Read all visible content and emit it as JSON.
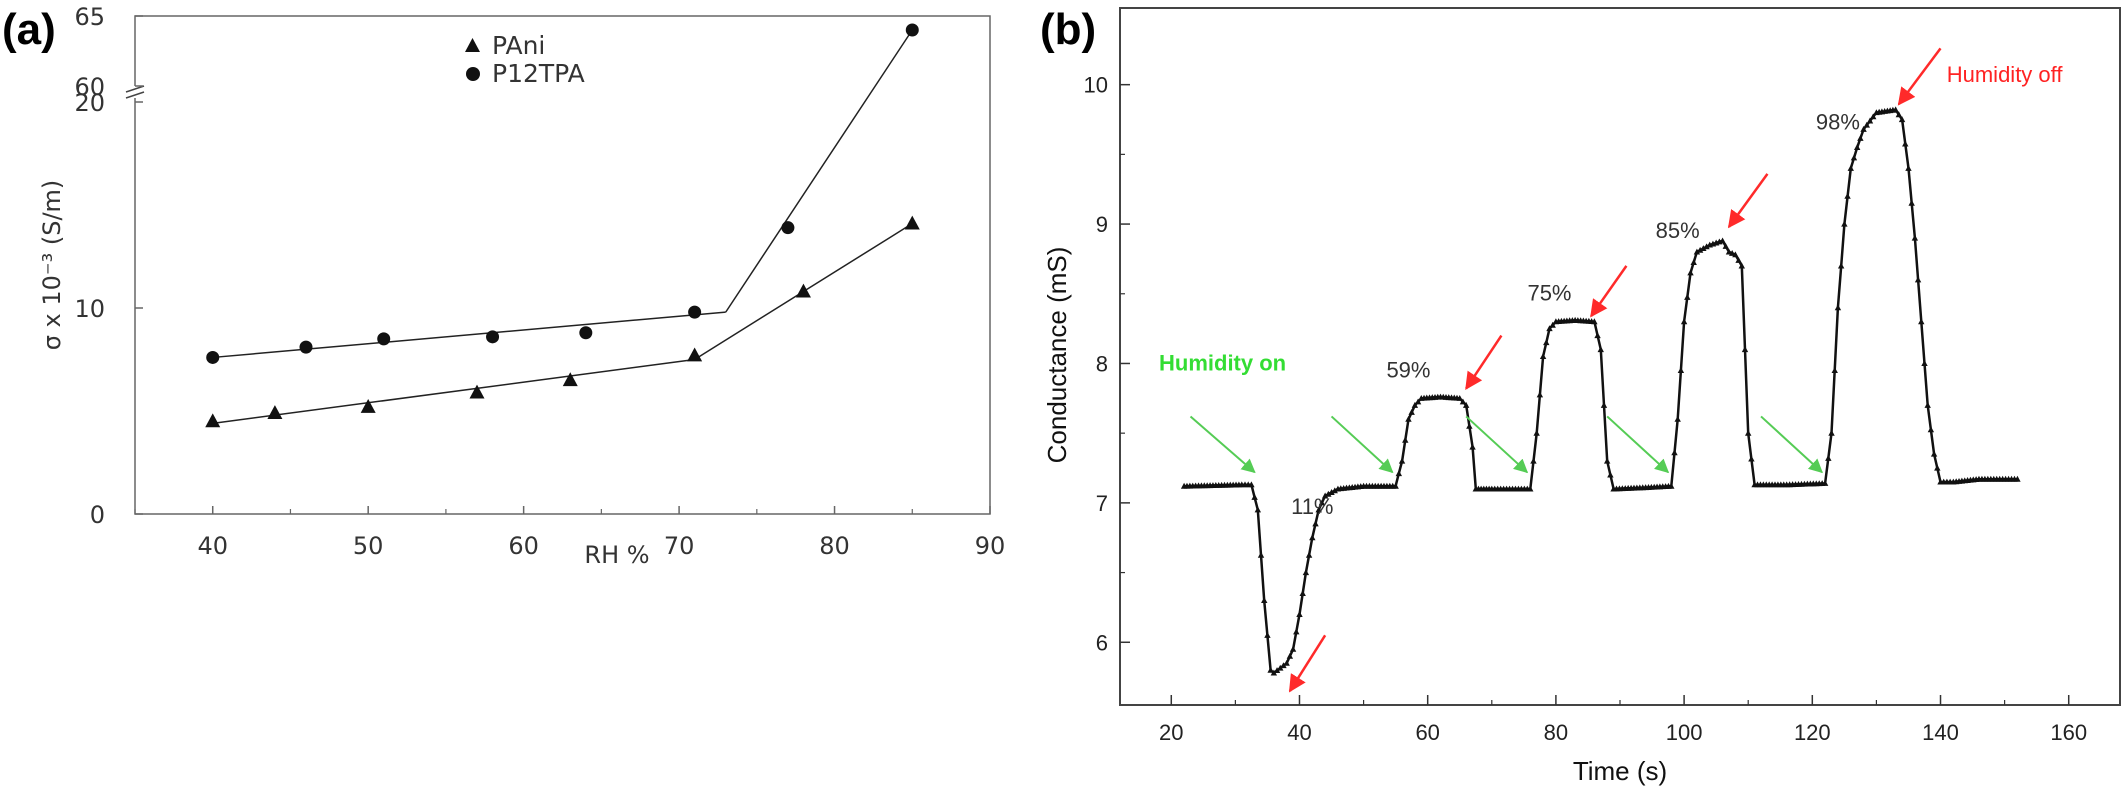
{
  "panels": {
    "a": "(a)",
    "b": "(b)"
  },
  "chart_data": [
    {
      "type": "scatter",
      "panel": "(a)",
      "xlabel": "RH %",
      "ylabel": "σ x 10⁻³ (S/m)",
      "xlim": [
        35,
        90
      ],
      "ylim": [
        0,
        65
      ],
      "y_axis_break": [
        22,
        59
      ],
      "xticks": [
        40,
        50,
        60,
        70,
        80,
        90
      ],
      "yticks": [
        0,
        10,
        20,
        60,
        65
      ],
      "legend_position": "top-right",
      "series": [
        {
          "name": "PAni",
          "marker": "triangle",
          "x": [
            40,
            44,
            50,
            57,
            63,
            71,
            78,
            85
          ],
          "y": [
            4.5,
            4.9,
            5.2,
            5.9,
            6.5,
            7.7,
            10.8,
            14.1
          ],
          "fit_lines": [
            {
              "x": [
                40,
                71
              ],
              "y": [
                4.4,
                7.5
              ]
            },
            {
              "x": [
                71,
                85
              ],
              "y": [
                7.5,
                14.1
              ]
            }
          ]
        },
        {
          "name": "P12TPA",
          "marker": "circle",
          "x": [
            40,
            46,
            51,
            58,
            64,
            71,
            77,
            85
          ],
          "y": [
            7.6,
            8.1,
            8.5,
            8.6,
            8.8,
            9.8,
            13.9,
            64
          ],
          "fit_lines": [
            {
              "x": [
                40,
                73
              ],
              "y": [
                7.6,
                9.8
              ]
            },
            {
              "x": [
                73,
                85
              ],
              "y": [
                9.8,
                64
              ]
            }
          ]
        }
      ]
    },
    {
      "type": "line",
      "panel": "(b)",
      "xlabel": "Time (s)",
      "ylabel": "Conductance (mS)",
      "xlim": [
        12,
        168
      ],
      "ylim": [
        5.55,
        10.55
      ],
      "xticks": [
        20,
        40,
        60,
        80,
        100,
        120,
        140,
        160
      ],
      "yticks": [
        6,
        7,
        8,
        9,
        10
      ],
      "series": [
        {
          "marker": "triangle",
          "points": [
            [
              22,
              7.12
            ],
            [
              31,
              7.13
            ],
            [
              32.5,
              7.13
            ],
            [
              33.5,
              6.95
            ],
            [
              34.5,
              6.3
            ],
            [
              35.5,
              5.8
            ],
            [
              36,
              5.78
            ],
            [
              38,
              5.85
            ],
            [
              39,
              5.95
            ],
            [
              40,
              6.2
            ],
            [
              41,
              6.5
            ],
            [
              42,
              6.75
            ],
            [
              43,
              6.95
            ],
            [
              44,
              7.05
            ],
            [
              46,
              7.1
            ],
            [
              50,
              7.12
            ],
            [
              55,
              7.12
            ],
            [
              56,
              7.3
            ],
            [
              57,
              7.6
            ],
            [
              58,
              7.7
            ],
            [
              59,
              7.75
            ],
            [
              62,
              7.76
            ],
            [
              65,
              7.75
            ],
            [
              66,
              7.7
            ],
            [
              67,
              7.4
            ],
            [
              67.5,
              7.1
            ],
            [
              70,
              7.1
            ],
            [
              76,
              7.1
            ],
            [
              77,
              7.5
            ],
            [
              78,
              8.05
            ],
            [
              79,
              8.25
            ],
            [
              80,
              8.3
            ],
            [
              83,
              8.31
            ],
            [
              86,
              8.3
            ],
            [
              87,
              8.1
            ],
            [
              88,
              7.3
            ],
            [
              89,
              7.1
            ],
            [
              94,
              7.11
            ],
            [
              98,
              7.12
            ],
            [
              99,
              7.6
            ],
            [
              100,
              8.3
            ],
            [
              101,
              8.65
            ],
            [
              102,
              8.8
            ],
            [
              104,
              8.85
            ],
            [
              106,
              8.88
            ],
            [
              107,
              8.8
            ],
            [
              108,
              8.78
            ],
            [
              109,
              8.7
            ],
            [
              110,
              7.5
            ],
            [
              111,
              7.13
            ],
            [
              116,
              7.13
            ],
            [
              122,
              7.14
            ],
            [
              123,
              7.5
            ],
            [
              124,
              8.4
            ],
            [
              125,
              9.0
            ],
            [
              126,
              9.4
            ],
            [
              127,
              9.55
            ],
            [
              128,
              9.68
            ],
            [
              130,
              9.8
            ],
            [
              133,
              9.82
            ],
            [
              134,
              9.75
            ],
            [
              135,
              9.4
            ],
            [
              136,
              8.9
            ],
            [
              137,
              8.3
            ],
            [
              138,
              7.7
            ],
            [
              139,
              7.35
            ],
            [
              140,
              7.15
            ],
            [
              142,
              7.15
            ],
            [
              146,
              7.17
            ],
            [
              152,
              7.17
            ]
          ]
        }
      ],
      "annotations": {
        "humidity_on": "Humidity on",
        "humidity_off": "Humidity off",
        "percent_labels": [
          {
            "text": "11%",
            "x": 42,
            "y": 6.92
          },
          {
            "text": "59%",
            "x": 57,
            "y": 7.9
          },
          {
            "text": "75%",
            "x": 79,
            "y": 8.45
          },
          {
            "text": "85%",
            "x": 99,
            "y": 8.9
          },
          {
            "text": "98%",
            "x": 124,
            "y": 9.68
          }
        ],
        "green_arrows": [
          {
            "x1": 23,
            "y1": 7.62,
            "x2": 33,
            "y2": 7.22
          },
          {
            "x1": 45,
            "y1": 7.62,
            "x2": 54.5,
            "y2": 7.22
          },
          {
            "x1": 66,
            "y1": 7.62,
            "x2": 75.5,
            "y2": 7.22
          },
          {
            "x1": 88,
            "y1": 7.62,
            "x2": 97.5,
            "y2": 7.22
          },
          {
            "x1": 112,
            "y1": 7.62,
            "x2": 121.5,
            "y2": 7.22
          }
        ],
        "red_arrows": [
          {
            "x1": 44,
            "y1": 6.05,
            "x2": 38.5,
            "y2": 5.65
          },
          {
            "x1": 71.5,
            "y1": 8.2,
            "x2": 66,
            "y2": 7.82
          },
          {
            "x1": 91,
            "y1": 8.7,
            "x2": 85.5,
            "y2": 8.34
          },
          {
            "x1": 113,
            "y1": 9.36,
            "x2": 107,
            "y2": 8.98
          },
          {
            "x1": 140,
            "y1": 10.26,
            "x2": 133.5,
            "y2": 9.86
          }
        ]
      }
    }
  ]
}
